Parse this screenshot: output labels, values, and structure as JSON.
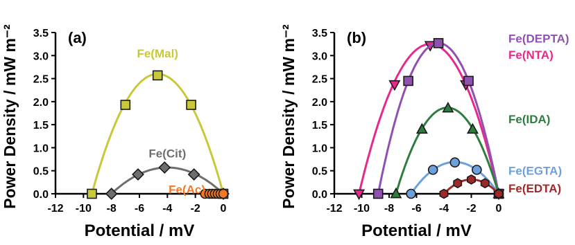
{
  "colors": {
    "mal": "#c8c838",
    "cit": "#6e6e6e",
    "ac": "#f07828",
    "depta": "#9050b0",
    "nta": "#e8288c",
    "ida": "#2e7d3e",
    "egta": "#6ea0dc",
    "edta": "#a02828"
  },
  "chart_data": [
    {
      "type": "scatter",
      "panel_label": "(a)",
      "xlabel": "Potential / mV",
      "ylabel": "Power Density / mW m⁻²",
      "xlim": [
        -12,
        0
      ],
      "ylim": [
        0,
        3.5
      ],
      "xticks": [
        -12,
        -10,
        -8,
        -6,
        -4,
        -2,
        0
      ],
      "yticks": [
        0.0,
        0.5,
        1.0,
        1.5,
        2.0,
        2.5,
        3.0,
        3.5
      ],
      "grid": false,
      "series": [
        {
          "name": "Fe(Mal)",
          "color_key": "mal",
          "marker": "square",
          "points": [
            [
              -9.4,
              0.0
            ],
            [
              -7.0,
              1.93
            ],
            [
              -4.7,
              2.57
            ],
            [
              -2.3,
              1.93
            ],
            [
              0.0,
              0.0
            ]
          ],
          "fit": {
            "peak_x": -4.7,
            "peak_y": 2.6,
            "x_range": [
              -9.4,
              0.0
            ]
          },
          "label_at": [
            -4.7,
            3.05
          ]
        },
        {
          "name": "Fe(Cit)",
          "color_key": "cit",
          "marker": "diamond",
          "points": [
            [
              -8.0,
              0.0
            ],
            [
              -6.1,
              0.42
            ],
            [
              -4.2,
              0.57
            ],
            [
              -2.1,
              0.42
            ],
            [
              0.0,
              0.0
            ]
          ],
          "fit": {
            "peak_x": -4.0,
            "peak_y": 0.57,
            "x_range": [
              -8.0,
              0.0
            ]
          },
          "label_at": [
            -4.0,
            0.88
          ]
        },
        {
          "name": "Fe(Ac)",
          "color_key": "ac",
          "marker": "circle",
          "points": [
            [
              -1.3,
              0.0
            ],
            [
              -1.0,
              0.0
            ],
            [
              -0.8,
              0.0
            ],
            [
              -0.6,
              0.0
            ],
            [
              -0.4,
              0.0
            ],
            [
              -0.2,
              0.0
            ],
            [
              0.0,
              0.0
            ]
          ],
          "fit": null,
          "label_at": [
            -2.6,
            0.1
          ]
        }
      ]
    },
    {
      "type": "scatter",
      "panel_label": "(b)",
      "xlabel": "Potential / mV",
      "ylabel": "Power Density / mW m⁻²",
      "xlim": [
        -12,
        0
      ],
      "ylim": [
        0,
        3.5
      ],
      "xticks": [
        -12,
        -10,
        -8,
        -6,
        -4,
        -2,
        0
      ],
      "yticks": [
        0.0,
        0.5,
        1.0,
        1.5,
        2.0,
        2.5,
        3.0,
        3.5
      ],
      "grid": false,
      "series": [
        {
          "name": "Fe(NTA)",
          "color_key": "nta",
          "marker": "triangle-down",
          "points": [
            [
              -10.2,
              0.0
            ],
            [
              -7.6,
              2.37
            ],
            [
              -5.0,
              3.22
            ],
            [
              -2.4,
              2.37
            ],
            [
              0.0,
              0.0
            ]
          ],
          "fit": {
            "peak_x": -5.0,
            "peak_y": 3.25,
            "x_range": [
              -10.2,
              0.0
            ]
          },
          "legend_y": 3.02
        },
        {
          "name": "Fe(DEPTA)",
          "color_key": "depta",
          "marker": "square",
          "points": [
            [
              -8.8,
              0.0
            ],
            [
              -6.6,
              2.45
            ],
            [
              -4.4,
              3.27
            ],
            [
              -2.2,
              2.45
            ],
            [
              0.0,
              0.0
            ]
          ],
          "fit": {
            "peak_x": -4.4,
            "peak_y": 3.27,
            "x_range": [
              -8.8,
              0.0
            ]
          },
          "legend_y": 3.37
        },
        {
          "name": "Fe(IDA)",
          "color_key": "ida",
          "marker": "triangle-up",
          "points": [
            [
              -7.5,
              0.0
            ],
            [
              -5.6,
              1.4
            ],
            [
              -3.7,
              1.86
            ],
            [
              -1.9,
              1.4
            ],
            [
              0.0,
              0.0
            ]
          ],
          "fit": {
            "peak_x": -3.75,
            "peak_y": 1.87,
            "x_range": [
              -7.5,
              0.0
            ]
          },
          "legend_y": 1.62
        },
        {
          "name": "Fe(EGTA)",
          "color_key": "egta",
          "marker": "circle",
          "points": [
            [
              -6.4,
              0.0
            ],
            [
              -4.8,
              0.52
            ],
            [
              -3.2,
              0.68
            ],
            [
              -1.6,
              0.52
            ],
            [
              0.0,
              0.0
            ]
          ],
          "fit": {
            "peak_x": -3.2,
            "peak_y": 0.69,
            "x_range": [
              -6.4,
              0.0
            ]
          },
          "legend_y": 0.5
        },
        {
          "name": "Fe(EDTA)",
          "color_key": "edta",
          "marker": "hexagon",
          "points": [
            [
              -4.0,
              0.0
            ],
            [
              -3.0,
              0.23
            ],
            [
              -2.0,
              0.31
            ],
            [
              -1.0,
              0.23
            ],
            [
              0.0,
              0.0
            ]
          ],
          "fit": {
            "peak_x": -2.0,
            "peak_y": 0.31,
            "x_range": [
              -4.0,
              0.0
            ]
          },
          "legend_y": 0.12
        }
      ]
    }
  ]
}
